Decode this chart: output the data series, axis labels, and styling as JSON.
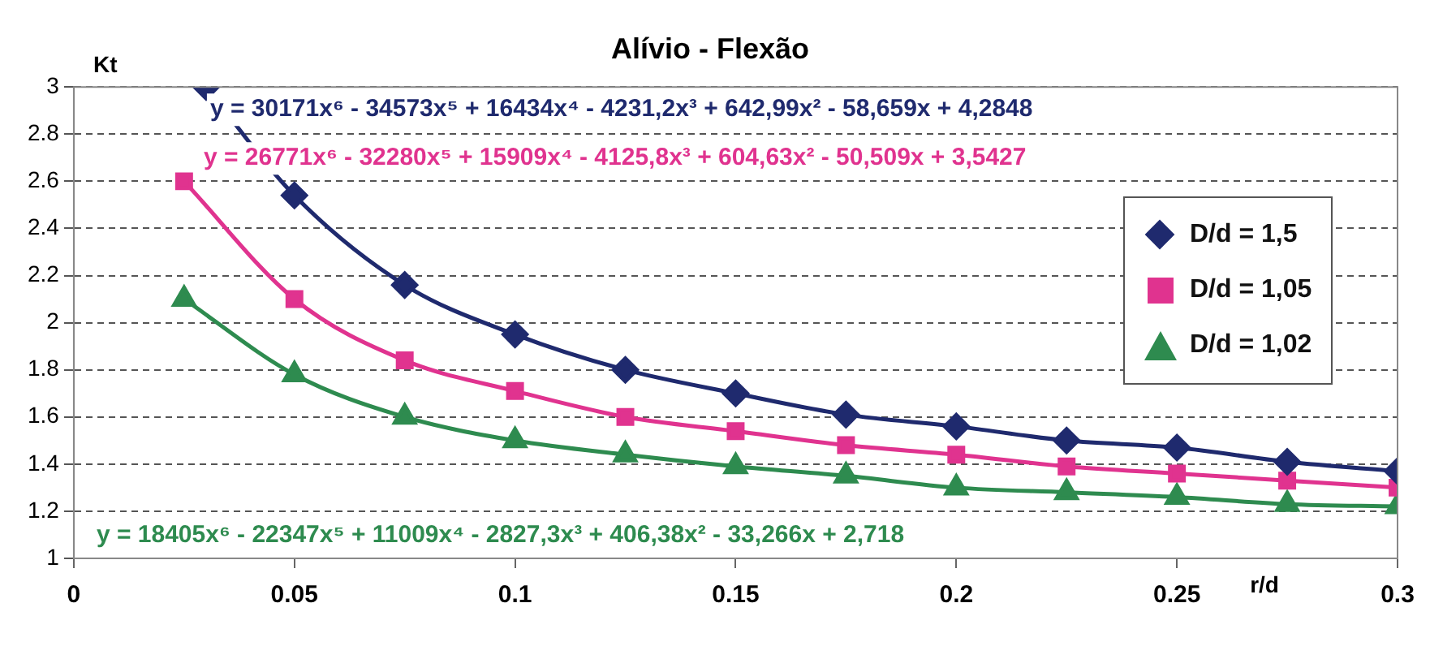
{
  "chart_data": {
    "type": "line",
    "title": "Alívio - Flexão",
    "xlabel": "r/d",
    "ylabel": "Kt",
    "x": [
      0.025,
      0.05,
      0.075,
      0.1,
      0.125,
      0.15,
      0.175,
      0.2,
      0.225,
      0.25,
      0.275,
      0.3
    ],
    "series": [
      {
        "name": "D/d = 1,5",
        "color": "#1f2a6e",
        "marker": "diamond",
        "x": [
          0.03,
          0.05,
          0.075,
          0.1,
          0.125,
          0.15,
          0.175,
          0.2,
          0.225,
          0.25,
          0.275,
          0.3
        ],
        "values": [
          3.0,
          2.54,
          2.16,
          1.95,
          1.8,
          1.7,
          1.61,
          1.56,
          1.5,
          1.47,
          1.41,
          1.37
        ]
      },
      {
        "name": "D/d = 1,05",
        "color": "#e0338f",
        "marker": "square",
        "values": [
          2.6,
          2.1,
          1.84,
          1.71,
          1.6,
          1.54,
          1.48,
          1.44,
          1.39,
          1.36,
          1.33,
          1.3
        ]
      },
      {
        "name": "D/d = 1,02",
        "color": "#2e8b4f",
        "marker": "triangle",
        "values": [
          2.1,
          1.78,
          1.6,
          1.5,
          1.44,
          1.39,
          1.35,
          1.3,
          1.28,
          1.26,
          1.23,
          1.22
        ]
      }
    ],
    "annotations": [
      "y = 30171x⁶ - 34573x⁵ + 16434x⁴ - 4231,2x³ + 642,99x² - 58,659x + 4,2848",
      "y = 26771x⁶ - 32280x⁵ + 15909x⁴ - 4125,8x³ + 604,63x² - 50,509x + 3,5427",
      "y = 18405x⁶ - 22347x⁵ + 11009x⁴ - 2827,3x³ + 406,38x² - 33,266x + 2,718"
    ],
    "xlim": [
      0,
      0.3
    ],
    "xticks": [
      0,
      0.05,
      0.1,
      0.15,
      0.2,
      0.25,
      0.3
    ],
    "ylim": [
      1,
      3
    ],
    "yticks": [
      1,
      1.2,
      1.4,
      1.6,
      1.8,
      2,
      2.2,
      2.4,
      2.6,
      2.8,
      3
    ],
    "grid": "y",
    "legend": "right",
    "line_style": "solid"
  }
}
